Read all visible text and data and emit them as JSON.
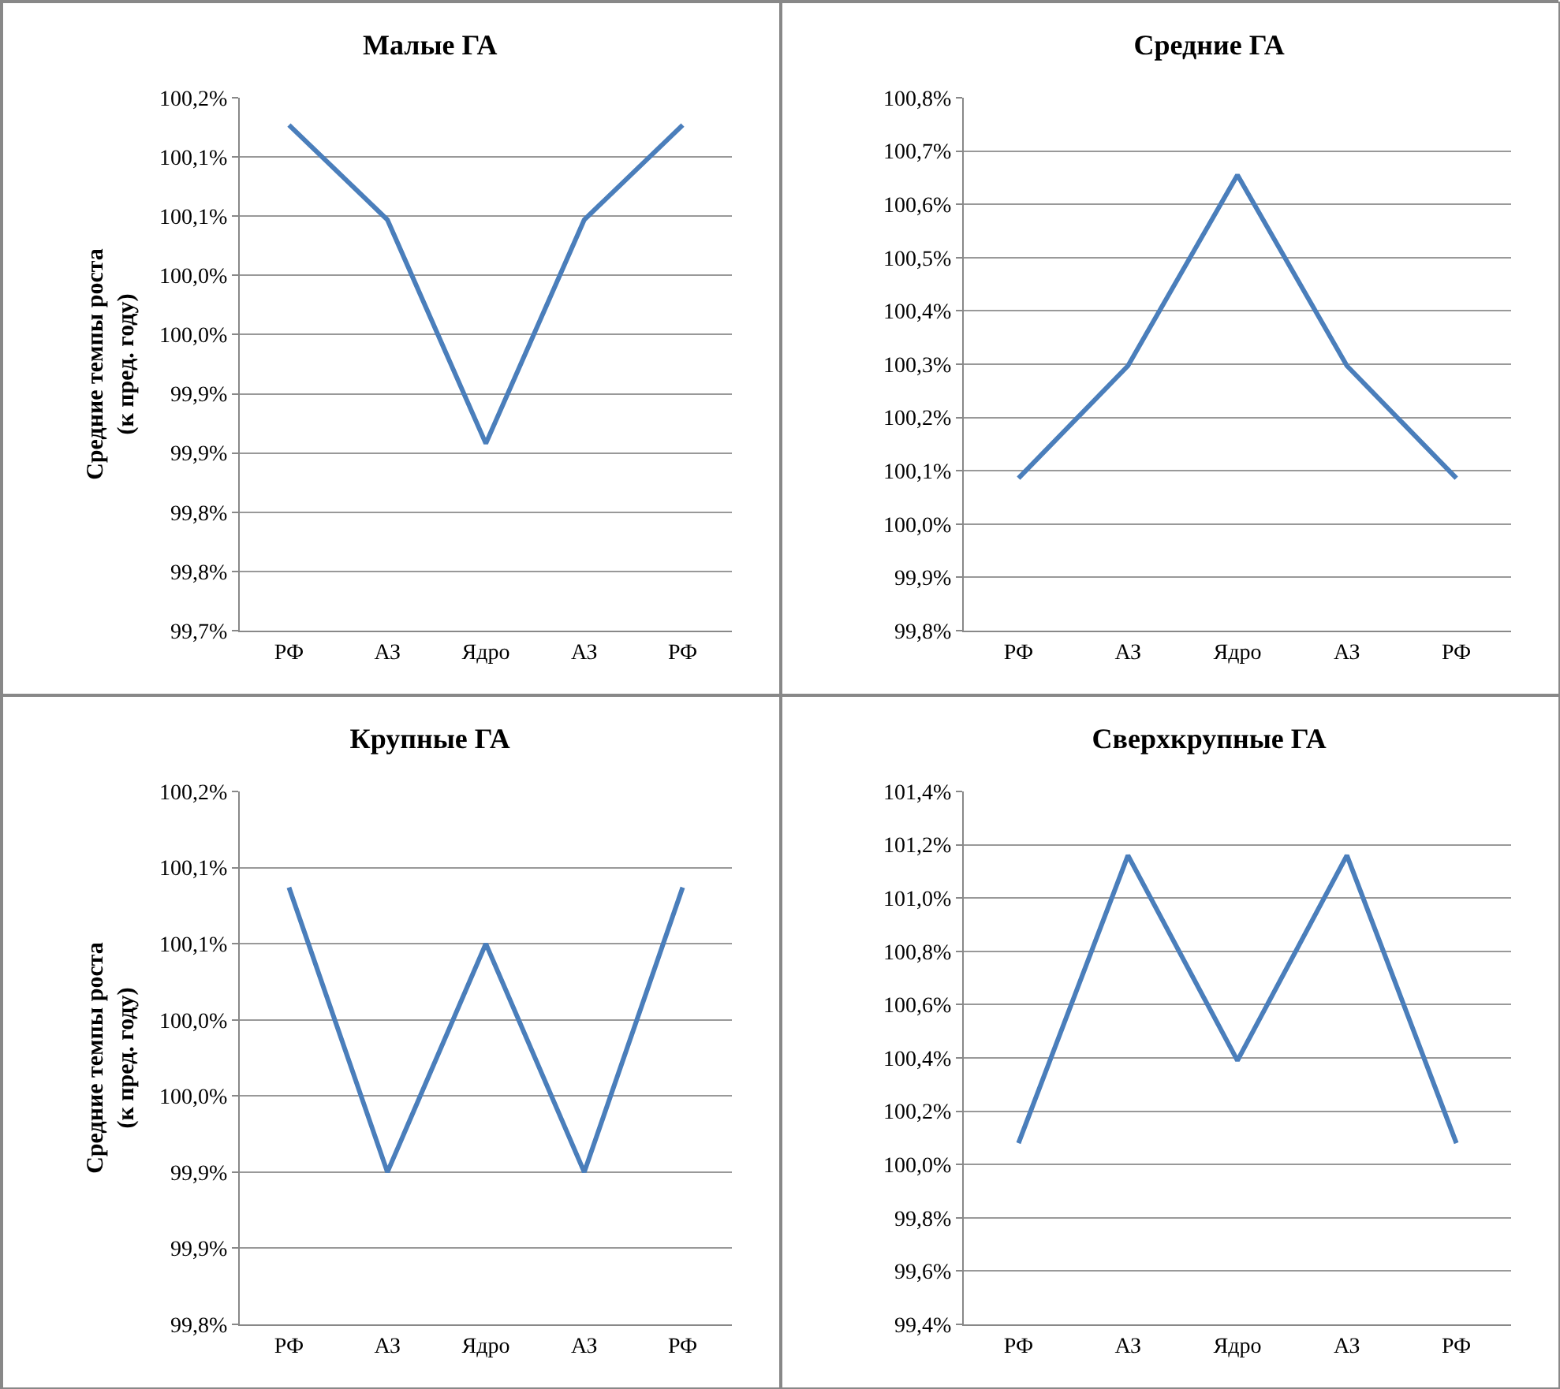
{
  "chart_data": [
    {
      "type": "line",
      "title": "Малые ГА",
      "ylabel": "Средние темпы роста (к пред. году)",
      "categories": [
        "РФ",
        "АЗ",
        "Ядро",
        "АЗ",
        "РФ"
      ],
      "series": [
        {
          "color": "#4a7ebb",
          "values": [
            100.127,
            100.047,
            99.858,
            100.047,
            100.127
          ]
        }
      ],
      "ylim": [
        99.7,
        100.15
      ],
      "yticks": [
        {
          "value": 99.7,
          "label": "99,7%"
        },
        {
          "value": 99.75,
          "label": "99,8%"
        },
        {
          "value": 99.8,
          "label": "99,8%"
        },
        {
          "value": 99.85,
          "label": "99,9%"
        },
        {
          "value": 99.9,
          "label": "99,9%"
        },
        {
          "value": 99.95,
          "label": "100,0%"
        },
        {
          "value": 100.0,
          "label": "100,0%"
        },
        {
          "value": 100.05,
          "label": "100,1%"
        },
        {
          "value": 100.1,
          "label": "100,1%"
        },
        {
          "value": 100.15,
          "label": "100,2%"
        }
      ],
      "grid": "y",
      "marker": "none",
      "line_style": "solid"
    },
    {
      "type": "line",
      "title": "Средние ГА",
      "categories": [
        "РФ",
        "АЗ",
        "Ядро",
        "АЗ",
        "РФ"
      ],
      "series": [
        {
          "color": "#4a7ebb",
          "values": [
            100.086,
            100.297,
            100.655,
            100.297,
            100.086
          ]
        }
      ],
      "ylim": [
        99.8,
        100.8
      ],
      "yticks": [
        {
          "value": 99.8,
          "label": "99,8%"
        },
        {
          "value": 99.9,
          "label": "99,9%"
        },
        {
          "value": 100.0,
          "label": "100,0%"
        },
        {
          "value": 100.1,
          "label": "100,1%"
        },
        {
          "value": 100.2,
          "label": "100,2%"
        },
        {
          "value": 100.3,
          "label": "100,3%"
        },
        {
          "value": 100.4,
          "label": "100,4%"
        },
        {
          "value": 100.5,
          "label": "100,5%"
        },
        {
          "value": 100.6,
          "label": "100,6%"
        },
        {
          "value": 100.7,
          "label": "100,7%"
        },
        {
          "value": 100.8,
          "label": "100,8%"
        }
      ],
      "grid": "y",
      "marker": "none",
      "line_style": "solid"
    },
    {
      "type": "line",
      "title": "Крупные ГА",
      "ylabel": "Средние темпы роста (к пред. году)",
      "categories": [
        "РФ",
        "АЗ",
        "Ядро",
        "АЗ",
        "РФ"
      ],
      "series": [
        {
          "color": "#4a7ebb",
          "values": [
            100.087,
            99.9,
            100.05,
            99.9,
            100.087
          ]
        }
      ],
      "ylim": [
        99.8,
        100.15
      ],
      "yticks": [
        {
          "value": 99.8,
          "label": "99,8%"
        },
        {
          "value": 99.85,
          "label": "99,9%"
        },
        {
          "value": 99.9,
          "label": "99,9%"
        },
        {
          "value": 99.95,
          "label": "100,0%"
        },
        {
          "value": 100.0,
          "label": "100,0%"
        },
        {
          "value": 100.05,
          "label": "100,1%"
        },
        {
          "value": 100.1,
          "label": "100,1%"
        },
        {
          "value": 100.15,
          "label": "100,2%"
        }
      ],
      "grid": "y",
      "marker": "none",
      "line_style": "solid"
    },
    {
      "type": "line",
      "title": "Сверхкрупные ГА",
      "categories": [
        "РФ",
        "АЗ",
        "Ядро",
        "АЗ",
        "РФ"
      ],
      "series": [
        {
          "color": "#4a7ebb",
          "values": [
            100.08,
            101.16,
            100.39,
            101.16,
            100.08
          ]
        }
      ],
      "ylim": [
        99.4,
        101.4
      ],
      "yticks": [
        {
          "value": 99.4,
          "label": "99,4%"
        },
        {
          "value": 99.6,
          "label": "99,6%"
        },
        {
          "value": 99.8,
          "label": "99,8%"
        },
        {
          "value": 100.0,
          "label": "100,0%"
        },
        {
          "value": 100.2,
          "label": "100,2%"
        },
        {
          "value": 100.4,
          "label": "100,4%"
        },
        {
          "value": 100.6,
          "label": "100,6%"
        },
        {
          "value": 100.8,
          "label": "100,8%"
        },
        {
          "value": 101.0,
          "label": "101,0%"
        },
        {
          "value": 101.2,
          "label": "101,2%"
        },
        {
          "value": 101.4,
          "label": "101,4%"
        }
      ],
      "grid": "y",
      "marker": "none",
      "line_style": "solid"
    }
  ]
}
